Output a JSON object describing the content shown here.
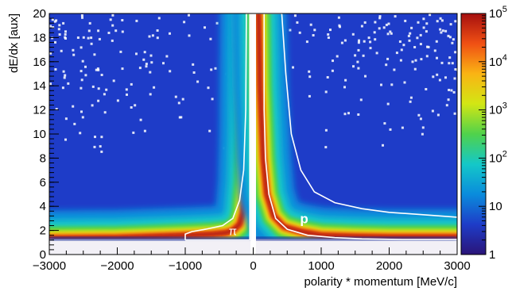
{
  "chart_data": {
    "type": "heatmap",
    "title": "",
    "xlabel": "polarity * momentum [MeV/c]",
    "ylabel": "dE/dx [aux]",
    "xlim": [
      -3000,
      3000
    ],
    "ylim": [
      0,
      20
    ],
    "x_ticks": [
      -3000,
      -2000,
      -1000,
      0,
      1000,
      2000,
      3000
    ],
    "x_tick_labels": [
      "−3000",
      "−2000",
      "−1000",
      "0",
      "1000",
      "2000",
      "3000"
    ],
    "y_ticks": [
      0,
      2,
      4,
      6,
      8,
      10,
      12,
      14,
      16,
      18,
      20
    ],
    "y_tick_labels": [
      "0",
      "2",
      "4",
      "6",
      "8",
      "10",
      "12",
      "14",
      "16",
      "18",
      "20"
    ],
    "colorbar": {
      "scale": "log",
      "range": [
        1,
        100000
      ],
      "ticks": [
        1,
        10,
        100,
        1000,
        10000,
        100000
      ],
      "tick_labels": [
        {
          "base": "1",
          "exp": ""
        },
        {
          "base": "10",
          "exp": ""
        },
        {
          "base": "10",
          "exp": "2"
        },
        {
          "base": "10",
          "exp": "3"
        },
        {
          "base": "10",
          "exp": "4"
        },
        {
          "base": "10",
          "exp": "5"
        }
      ],
      "colors": [
        "#2a1478",
        "#1e3cc8",
        "#0a8cdc",
        "#14c8c8",
        "#50d24b",
        "#d2e614",
        "#fab414",
        "#f05014",
        "#a50f0f"
      ]
    },
    "bands": [
      {
        "name": "π",
        "label_position": {
          "x": -300,
          "y": 1.6
        },
        "ridge": [
          {
            "x": -3000,
            "y": 1.35
          },
          {
            "x": -2000,
            "y": 1.4
          },
          {
            "x": -1500,
            "y": 1.5
          },
          {
            "x": -1000,
            "y": 1.6
          },
          {
            "x": -600,
            "y": 1.7
          },
          {
            "x": -400,
            "y": 1.8
          },
          {
            "x": -300,
            "y": 2.0
          },
          {
            "x": -200,
            "y": 2.5
          },
          {
            "x": -150,
            "y": 3.5
          },
          {
            "x": -110,
            "y": 6
          },
          {
            "x": -90,
            "y": 10
          },
          {
            "x": -75,
            "y": 20
          }
        ]
      },
      {
        "name": "p",
        "label_position": {
          "x": 750,
          "y": 2.6
        },
        "ridge": [
          {
            "x": 80,
            "y": 20
          },
          {
            "x": 100,
            "y": 14
          },
          {
            "x": 150,
            "y": 8
          },
          {
            "x": 200,
            "y": 5
          },
          {
            "x": 300,
            "y": 3.2
          },
          {
            "x": 450,
            "y": 2.3
          },
          {
            "x": 700,
            "y": 1.9
          },
          {
            "x": 1000,
            "y": 1.6
          },
          {
            "x": 1500,
            "y": 1.5
          },
          {
            "x": 2000,
            "y": 1.45
          },
          {
            "x": 3000,
            "y": 1.45
          }
        ]
      }
    ],
    "contours": [
      {
        "name": "pi-contour",
        "points": [
          {
            "x": -1000,
            "y": 1.2
          },
          {
            "x": -1000,
            "y": 1.7
          },
          {
            "x": -900,
            "y": 1.9
          },
          {
            "x": -700,
            "y": 2.1
          },
          {
            "x": -450,
            "y": 2.4
          },
          {
            "x": -300,
            "y": 3.0
          },
          {
            "x": -200,
            "y": 4.5
          },
          {
            "x": -140,
            "y": 7
          },
          {
            "x": -110,
            "y": 12
          },
          {
            "x": -100,
            "y": 20
          },
          {
            "x": -50,
            "y": 20
          },
          {
            "x": -50,
            "y": 1.2
          },
          {
            "x": -1000,
            "y": 1.2
          }
        ]
      },
      {
        "name": "p-contour",
        "points": [
          {
            "x": 30,
            "y": 1.0
          },
          {
            "x": 30,
            "y": 20
          },
          {
            "x": 420,
            "y": 20
          },
          {
            "x": 480,
            "y": 15
          },
          {
            "x": 560,
            "y": 10
          },
          {
            "x": 700,
            "y": 7
          },
          {
            "x": 900,
            "y": 5.2
          },
          {
            "x": 1200,
            "y": 4.3
          },
          {
            "x": 1600,
            "y": 3.8
          },
          {
            "x": 2000,
            "y": 3.5
          },
          {
            "x": 2500,
            "y": 3.3
          },
          {
            "x": 3000,
            "y": 3.1
          }
        ]
      },
      {
        "name": "p-inner-contour",
        "points": [
          {
            "x": 160,
            "y": 20
          },
          {
            "x": 160,
            "y": 12
          },
          {
            "x": 180,
            "y": 8
          },
          {
            "x": 230,
            "y": 5
          },
          {
            "x": 330,
            "y": 3.0
          },
          {
            "x": 500,
            "y": 2.1
          },
          {
            "x": 800,
            "y": 1.6
          },
          {
            "x": 1200,
            "y": 1.4
          },
          {
            "x": 1600,
            "y": 1.3
          },
          {
            "x": 2200,
            "y": 1.25
          },
          {
            "x": 3000,
            "y": 1.25
          }
        ]
      }
    ],
    "grid": false
  }
}
